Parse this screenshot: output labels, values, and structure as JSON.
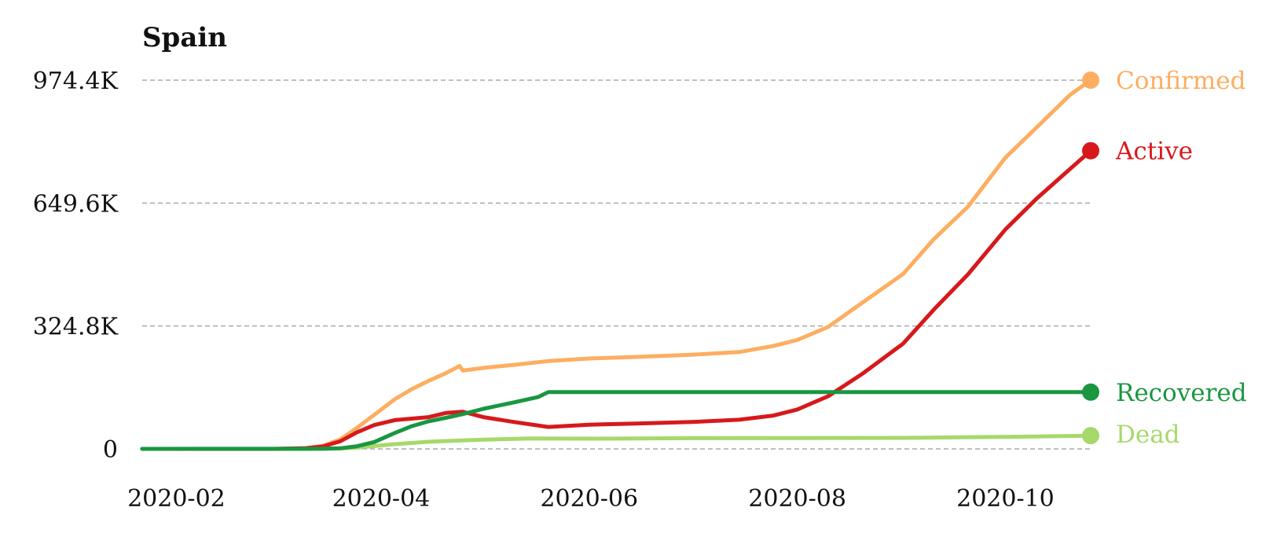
{
  "chart_data": {
    "type": "line",
    "title": "Spain",
    "xlabel": "",
    "ylabel": "",
    "grid": "horizontal-dashed",
    "legend": "end-of-line labels",
    "x_range": [
      "2020-01-22",
      "2020-10-26"
    ],
    "ylim": [
      0,
      974400
    ],
    "y_ticks": [
      {
        "value": 0,
        "label": "0"
      },
      {
        "value": 324800,
        "label": "324.8K"
      },
      {
        "value": 649600,
        "label": "649.6K"
      },
      {
        "value": 974400,
        "label": "974.4K"
      }
    ],
    "x_ticks": [
      {
        "date": "2020-02-01",
        "label": "2020-02"
      },
      {
        "date": "2020-04-01",
        "label": "2020-04"
      },
      {
        "date": "2020-06-01",
        "label": "2020-06"
      },
      {
        "date": "2020-08-01",
        "label": "2020-08"
      },
      {
        "date": "2020-10-01",
        "label": "2020-10"
      }
    ],
    "series": [
      {
        "name": "Confirmed",
        "color": "#fdae61",
        "points": [
          [
            "2020-01-22",
            0
          ],
          [
            "2020-03-01",
            100
          ],
          [
            "2020-03-10",
            2000
          ],
          [
            "2020-03-15",
            8000
          ],
          [
            "2020-03-20",
            25000
          ],
          [
            "2020-03-25",
            56000
          ],
          [
            "2020-03-30",
            90000
          ],
          [
            "2020-04-05",
            131000
          ],
          [
            "2020-04-10",
            158000
          ],
          [
            "2020-04-15",
            180000
          ],
          [
            "2020-04-20",
            200000
          ],
          [
            "2020-04-24",
            219000
          ],
          [
            "2020-04-25",
            207000
          ],
          [
            "2020-05-01",
            214000
          ],
          [
            "2020-05-10",
            222000
          ],
          [
            "2020-05-20",
            232000
          ],
          [
            "2020-06-01",
            239000
          ],
          [
            "2020-06-15",
            243000
          ],
          [
            "2020-07-01",
            249000
          ],
          [
            "2020-07-15",
            256000
          ],
          [
            "2020-07-25",
            272000
          ],
          [
            "2020-08-01",
            288000
          ],
          [
            "2020-08-10",
            322000
          ],
          [
            "2020-08-20",
            386000
          ],
          [
            "2020-09-01",
            462000
          ],
          [
            "2020-09-10",
            554000
          ],
          [
            "2020-09-20",
            640000
          ],
          [
            "2020-10-01",
            770000
          ],
          [
            "2020-10-10",
            848000
          ],
          [
            "2020-10-20",
            936000
          ],
          [
            "2020-10-26",
            974400
          ]
        ]
      },
      {
        "name": "Active",
        "color": "#d7191c",
        "points": [
          [
            "2020-01-22",
            0
          ],
          [
            "2020-03-01",
            100
          ],
          [
            "2020-03-10",
            1800
          ],
          [
            "2020-03-15",
            6500
          ],
          [
            "2020-03-20",
            20000
          ],
          [
            "2020-03-25",
            44000
          ],
          [
            "2020-03-30",
            63000
          ],
          [
            "2020-04-05",
            76000
          ],
          [
            "2020-04-10",
            80000
          ],
          [
            "2020-04-15",
            84000
          ],
          [
            "2020-04-20",
            95000
          ],
          [
            "2020-04-25",
            98000
          ],
          [
            "2020-05-01",
            84000
          ],
          [
            "2020-05-10",
            71000
          ],
          [
            "2020-05-20",
            58000
          ],
          [
            "2020-06-01",
            64000
          ],
          [
            "2020-06-15",
            67000
          ],
          [
            "2020-07-01",
            71000
          ],
          [
            "2020-07-15",
            77000
          ],
          [
            "2020-07-25",
            88000
          ],
          [
            "2020-08-01",
            104000
          ],
          [
            "2020-08-10",
            139000
          ],
          [
            "2020-08-20",
            198000
          ],
          [
            "2020-09-01",
            278000
          ],
          [
            "2020-09-10",
            368000
          ],
          [
            "2020-09-20",
            461000
          ],
          [
            "2020-10-01",
            580000
          ],
          [
            "2020-10-10",
            660000
          ],
          [
            "2020-10-20",
            740000
          ],
          [
            "2020-10-26",
            788000
          ]
        ]
      },
      {
        "name": "Recovered",
        "color": "#1a9641",
        "points": [
          [
            "2020-01-22",
            0
          ],
          [
            "2020-03-15",
            500
          ],
          [
            "2020-03-20",
            1500
          ],
          [
            "2020-03-25",
            7000
          ],
          [
            "2020-03-30",
            18000
          ],
          [
            "2020-04-05",
            42000
          ],
          [
            "2020-04-10",
            60000
          ],
          [
            "2020-04-15",
            73000
          ],
          [
            "2020-04-20",
            82000
          ],
          [
            "2020-04-25",
            92000
          ],
          [
            "2020-05-01",
            106000
          ],
          [
            "2020-05-10",
            123000
          ],
          [
            "2020-05-17",
            137000
          ],
          [
            "2020-05-20",
            150000
          ],
          [
            "2020-10-26",
            150000
          ]
        ]
      },
      {
        "name": "Dead",
        "color": "#a6d96a",
        "points": [
          [
            "2020-01-22",
            0
          ],
          [
            "2020-03-10",
            50
          ],
          [
            "2020-03-20",
            1000
          ],
          [
            "2020-03-25",
            3400
          ],
          [
            "2020-03-30",
            7500
          ],
          [
            "2020-04-05",
            12500
          ],
          [
            "2020-04-15",
            19000
          ],
          [
            "2020-05-01",
            24500
          ],
          [
            "2020-05-15",
            27500
          ],
          [
            "2020-06-01",
            27100
          ],
          [
            "2020-07-01",
            28300
          ],
          [
            "2020-08-01",
            28500
          ],
          [
            "2020-09-01",
            29000
          ],
          [
            "2020-10-01",
            31800
          ],
          [
            "2020-10-26",
            35000
          ]
        ]
      }
    ]
  }
}
